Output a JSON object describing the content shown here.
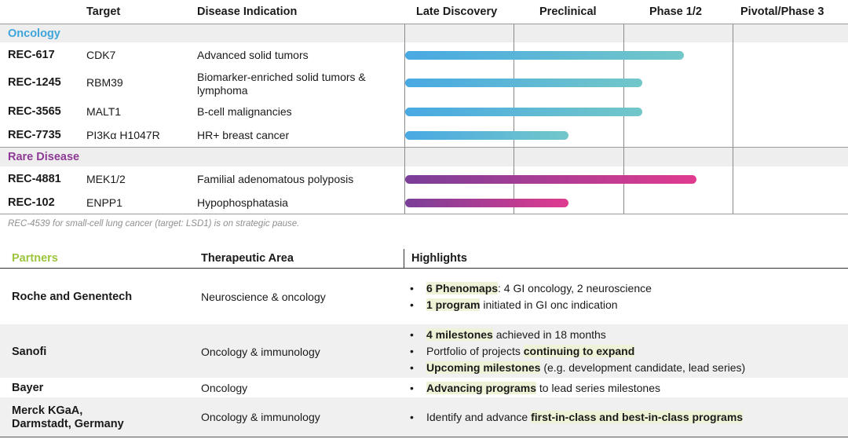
{
  "pipeline": {
    "headers": {
      "target": "Target",
      "indication": "Disease Indication",
      "stages": [
        "Late Discovery",
        "Preclinical",
        "Phase 1/2",
        "Pivotal/Phase 3"
      ]
    },
    "sections": [
      {
        "label": "Oncology",
        "color": "#3da5dc",
        "rows": [
          {
            "code": "REC-617",
            "target": "CDK7",
            "indication": "Advanced solid tumors",
            "progress_stage": 2.55
          },
          {
            "code": "REC-1245",
            "target": "RBM39",
            "indication": "Biomarker-enriched solid tumors & lymphoma",
            "progress_stage": 2.17
          },
          {
            "code": "REC-3565",
            "target": "MALT1",
            "indication": "B-cell malignancies",
            "progress_stage": 2.17
          },
          {
            "code": "REC-7735",
            "target": "PI3Kα H1047R",
            "indication": "HR+ breast cancer",
            "progress_stage": 1.5
          }
        ]
      },
      {
        "label": "Rare Disease",
        "color": "#8e3a96",
        "rows": [
          {
            "code": "REC-4881",
            "target": "MEK1/2",
            "indication": "Familial adenomatous polyposis",
            "progress_stage": 2.67
          },
          {
            "code": "REC-102",
            "target": "ENPP1",
            "indication": "Hypophosphatasia",
            "progress_stage": 1.5
          }
        ]
      }
    ],
    "note": "REC-4539 for small-cell lung cancer (target: LSD1) is on strategic pause."
  },
  "partners": {
    "headers": {
      "partners": "Partners",
      "area": "Therapeutic Area",
      "highlights": "Highlights"
    },
    "partners_color": "#9cc43c",
    "bullet": "•",
    "rows": [
      {
        "name": "Roche and Genentech",
        "area": "Neuroscience & oncology",
        "highlights": [
          [
            {
              "t": "6 Phenomaps",
              "b": true
            },
            {
              "t": ": 4 GI oncology, 2 neuroscience"
            }
          ],
          [
            {
              "t": "1 program",
              "b": true
            },
            {
              "t": " initiated in GI onc indication"
            }
          ]
        ]
      },
      {
        "name": "Sanofi",
        "area": "Oncology & immunology",
        "highlights": [
          [
            {
              "t": "4 milestones",
              "b": true
            },
            {
              "t": " achieved in 18 months"
            }
          ],
          [
            {
              "t": "Portfolio of projects "
            },
            {
              "t": "continuing to expand",
              "b": true
            }
          ],
          [
            {
              "t": "Upcoming milestones",
              "b": true
            },
            {
              "t": " (e.g. development candidate, lead series)"
            }
          ]
        ]
      },
      {
        "name": "Bayer",
        "area": "Oncology",
        "highlights": [
          [
            {
              "t": "Advancing programs",
              "b": true
            },
            {
              "t": " to lead series milestones"
            }
          ]
        ]
      },
      {
        "name": "Merck KGaA, Darmstadt, Germany",
        "name_lines": [
          "Merck KGaA,",
          "Darmstadt, Germany"
        ],
        "area": "Oncology & immunology",
        "highlights": [
          [
            {
              "t": "Identify and advance "
            },
            {
              "t": "first-in-class and best-in-class programs",
              "b": true
            }
          ]
        ]
      }
    ]
  }
}
